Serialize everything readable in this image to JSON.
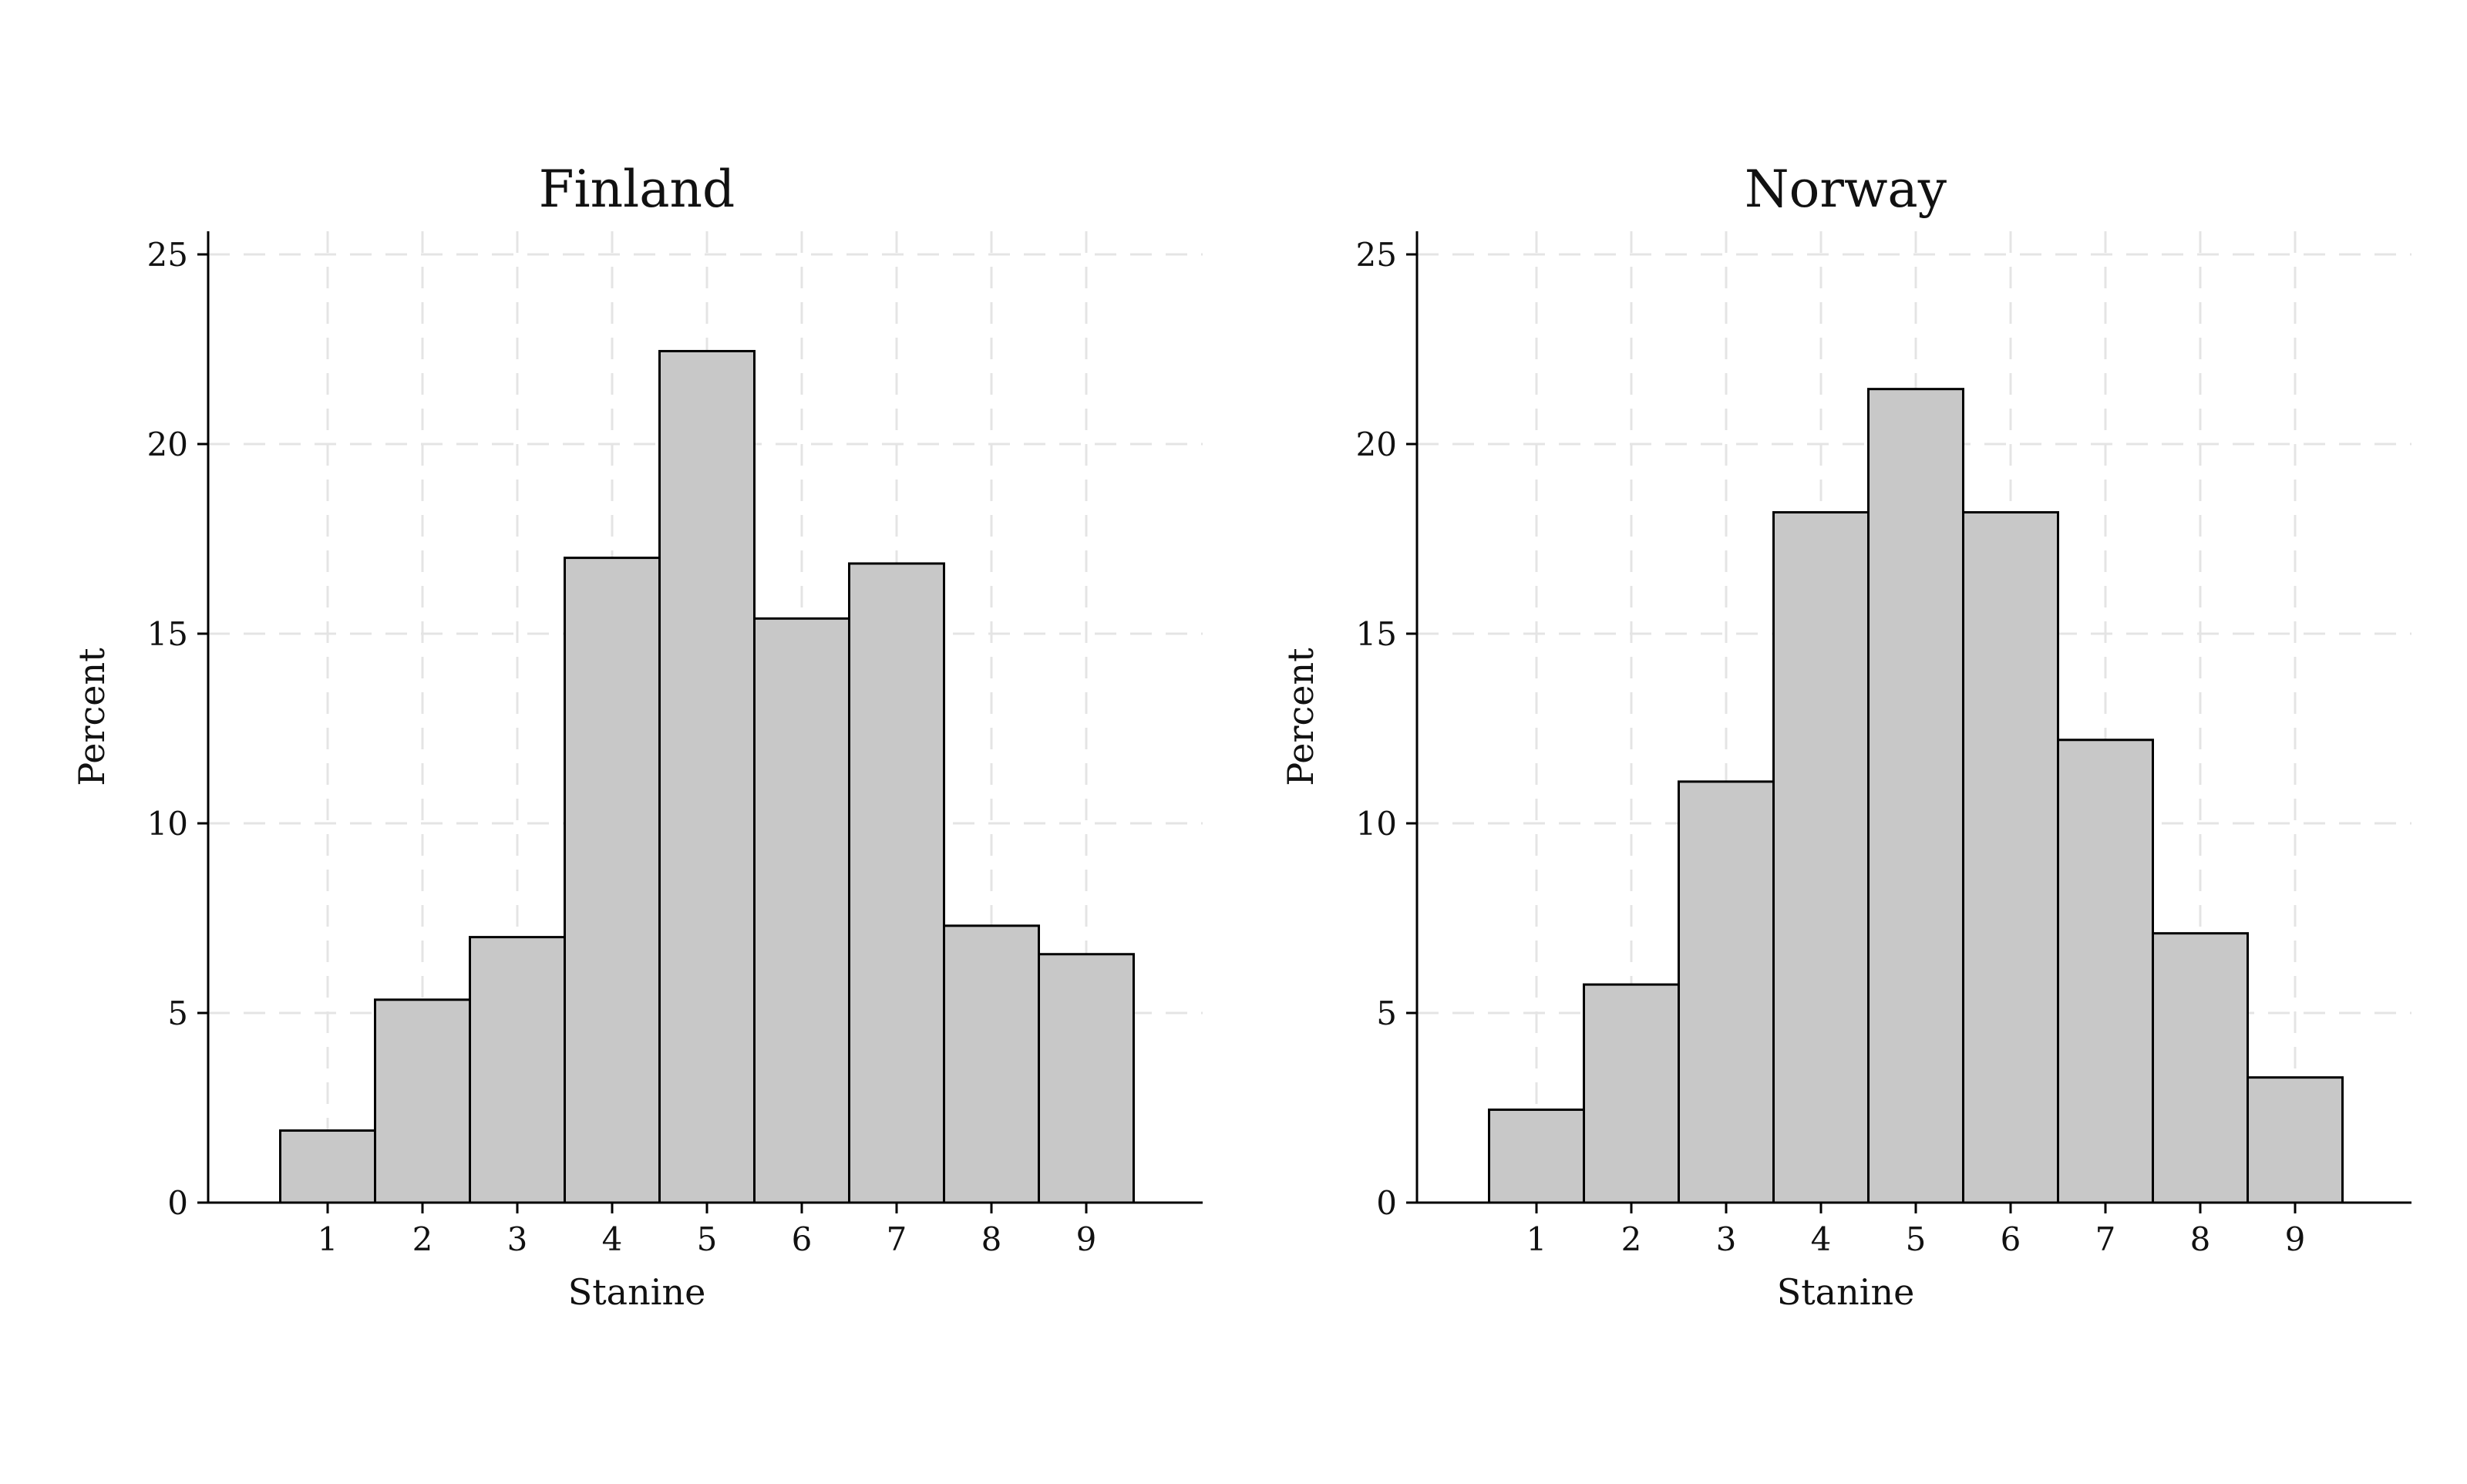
{
  "chart_data": [
    {
      "type": "bar",
      "title": "Finland",
      "xlabel": "Stanine",
      "ylabel": "Percent",
      "categories": [
        "1",
        "2",
        "3",
        "4",
        "5",
        "6",
        "7",
        "8",
        "9"
      ],
      "values": [
        1.9,
        5.35,
        7.0,
        17.0,
        22.45,
        15.4,
        16.85,
        7.3,
        6.55
      ],
      "ylim": [
        0,
        25
      ],
      "yticks": [
        "0",
        "5",
        "10",
        "15",
        "20",
        "25"
      ],
      "grid": true,
      "colors": {
        "bar_fill": "#c8c8c8",
        "bar_edge": "#000000",
        "grid": "#e4e4e4"
      }
    },
    {
      "type": "bar",
      "title": "Norway",
      "xlabel": "Stanine",
      "ylabel": "Percent",
      "categories": [
        "1",
        "2",
        "3",
        "4",
        "5",
        "6",
        "7",
        "8",
        "9"
      ],
      "values": [
        2.45,
        5.75,
        11.1,
        18.2,
        21.45,
        18.2,
        12.2,
        7.1,
        3.3
      ],
      "ylim": [
        0,
        25
      ],
      "yticks": [
        "0",
        "5",
        "10",
        "15",
        "20",
        "25"
      ],
      "grid": true,
      "colors": {
        "bar_fill": "#c8c8c8",
        "bar_edge": "#000000",
        "grid": "#e4e4e4"
      }
    }
  ]
}
